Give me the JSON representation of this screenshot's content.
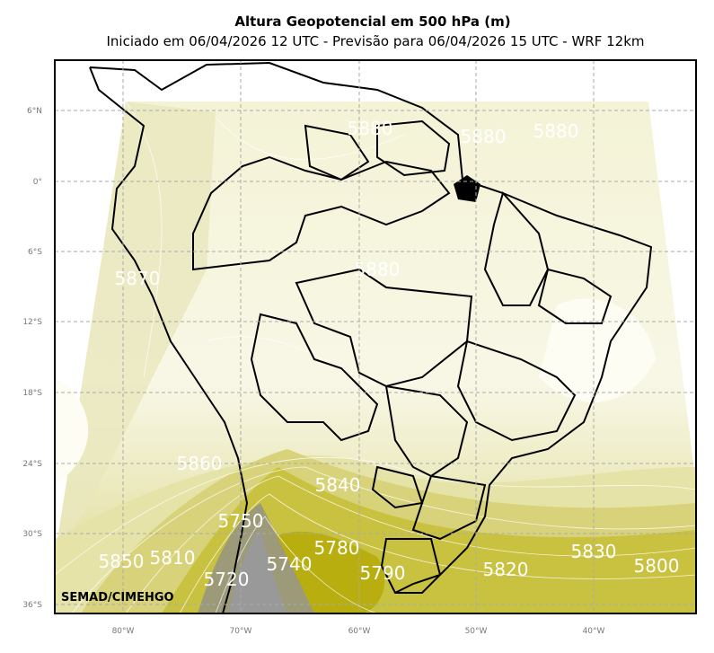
{
  "header": {
    "title": "Altura Geopotencial em 500 hPa (m)",
    "subtitle": "Iniciado em 06/04/2026 12 UTC - Previsão para 06/04/2026 15 UTC - WRF 12km"
  },
  "axes": {
    "lat_labels": [
      "6°N",
      "0°",
      "6°S",
      "12°S",
      "18°S",
      "24°S",
      "30°S",
      "36°S"
    ],
    "lon_labels": [
      "80°W",
      "70°W",
      "60°W",
      "50°W",
      "40°W"
    ]
  },
  "contour_labels": [
    "5880",
    "5880",
    "5880",
    "5870",
    "5880",
    "5860",
    "5840",
    "5750",
    "5850",
    "5810",
    "5720",
    "5740",
    "5780",
    "5790",
    "5820",
    "5830",
    "5800"
  ],
  "credit": "SEMAD/CIMEHGO"
}
